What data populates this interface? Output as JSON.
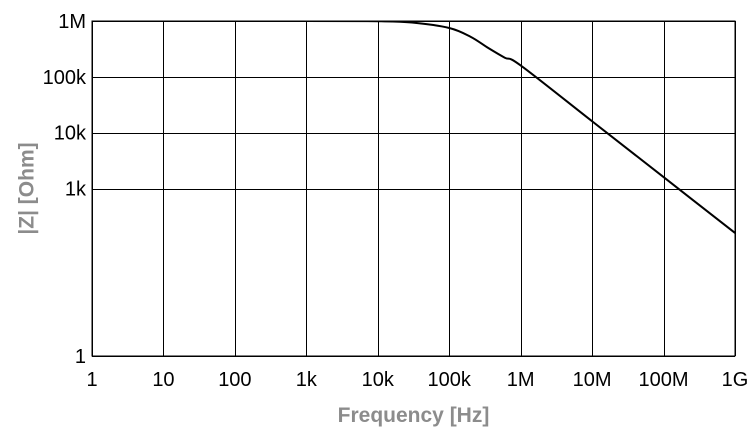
{
  "chart_data": {
    "type": "line",
    "xlabel": "Frequency [Hz]",
    "ylabel": "|Z| [Ohm]",
    "x_scale": "log",
    "y_scale": "log",
    "xlim": [
      1,
      1000000000
    ],
    "ylim": [
      1,
      1000000
    ],
    "grid": true,
    "x_ticks": [
      {
        "value": 1,
        "label": "1"
      },
      {
        "value": 10,
        "label": "10"
      },
      {
        "value": 100,
        "label": "100"
      },
      {
        "value": 1000,
        "label": "1k"
      },
      {
        "value": 10000,
        "label": "10k"
      },
      {
        "value": 100000,
        "label": "100k"
      },
      {
        "value": 1000000,
        "label": "1M"
      },
      {
        "value": 10000000,
        "label": "10M"
      },
      {
        "value": 100000000,
        "label": "100M"
      },
      {
        "value": 1000000000,
        "label": "1G"
      }
    ],
    "y_ticks": [
      {
        "value": 1,
        "label": "1"
      },
      {
        "value": 1000,
        "label": "1k"
      },
      {
        "value": 10000,
        "label": "10k"
      },
      {
        "value": 100000,
        "label": "100k"
      },
      {
        "value": 1000000,
        "label": "1M"
      }
    ],
    "series": [
      {
        "color": "#000000",
        "points": [
          {
            "x": 1,
            "y": 1000000
          },
          {
            "x": 1000,
            "y": 1000000
          },
          {
            "x": 10000,
            "y": 990000
          },
          {
            "x": 30000,
            "y": 940000
          },
          {
            "x": 100000,
            "y": 750000
          },
          {
            "x": 200000,
            "y": 520000
          },
          {
            "x": 350000,
            "y": 330000
          },
          {
            "x": 600000,
            "y": 220000
          },
          {
            "x": 1000000,
            "y": 160000
          },
          {
            "x": 10000000,
            "y": 16000
          },
          {
            "x": 100000000,
            "y": 1600
          },
          {
            "x": 1000000000,
            "y": 160
          }
        ]
      }
    ]
  }
}
